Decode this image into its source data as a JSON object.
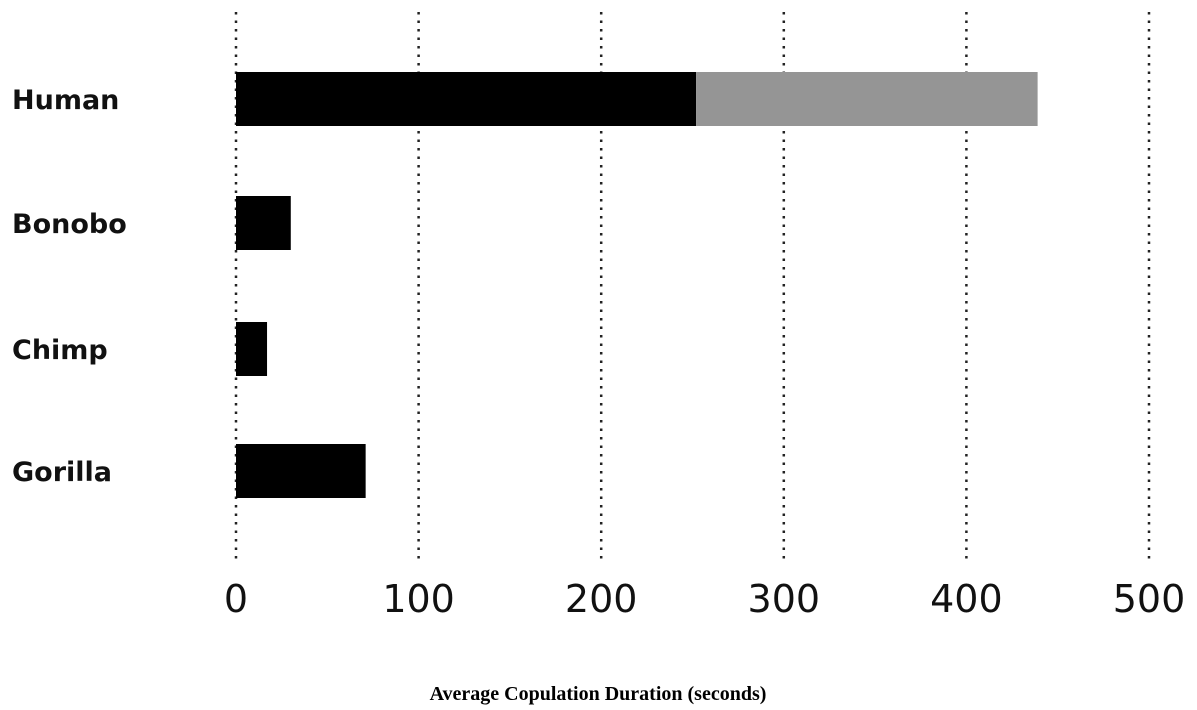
{
  "chart_data": {
    "type": "bar",
    "orientation": "horizontal",
    "stacked": true,
    "categories": [
      "Human",
      "Bonobo",
      "Chimp",
      "Gorilla"
    ],
    "series": [
      {
        "values": [
          252,
          30,
          17,
          71
        ],
        "color": "#000000"
      },
      {
        "values": [
          187,
          0,
          0,
          0
        ],
        "color": "#959595"
      }
    ],
    "xticks": [
      "0",
      "100",
      "200",
      "300",
      "400",
      "500"
    ],
    "xlim": [
      0,
      500
    ],
    "xlabel": "Average Copulation Duration (seconds)",
    "grid": "vertical dotted"
  }
}
